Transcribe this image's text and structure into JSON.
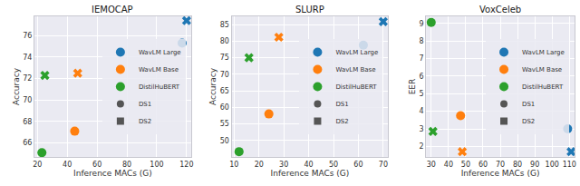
{
  "chart_data": [
    {
      "type": "scatter",
      "title": "IEMOCAP",
      "x_label": "Inference MACs (G)",
      "y_label": "Accuracy",
      "xlim": [
        18,
        123
      ],
      "xticks": [
        20,
        40,
        60,
        80,
        100,
        120
      ],
      "ylim": [
        64.7,
        77.8
      ],
      "yticks": [
        66,
        68,
        70,
        72,
        74,
        76
      ],
      "grid": true,
      "legend": "center right",
      "series": [
        {
          "name": "WavLM Large",
          "color": "#1f77b4",
          "marker": "circle"
        },
        {
          "name": "WavLM Base",
          "color": "#ff7f0e",
          "marker": "circle"
        },
        {
          "name": "DistilHuBERT",
          "color": "#2ca02c",
          "marker": "circle"
        },
        {
          "name": "DS1",
          "color": "#555555",
          "marker": "circle"
        },
        {
          "name": "DS2",
          "color": "#555555",
          "marker": "square"
        }
      ],
      "points": [
        {
          "series": "WavLM Large",
          "dataset": "DS1",
          "marker": "circle",
          "x": 117,
          "y": 75.3
        },
        {
          "series": "WavLM Large",
          "dataset": "DS2",
          "marker": "x",
          "x": 120,
          "y": 77.4
        },
        {
          "series": "WavLM Base",
          "dataset": "DS1",
          "marker": "circle",
          "x": 45,
          "y": 67.1
        },
        {
          "series": "WavLM Base",
          "dataset": "DS2",
          "marker": "x",
          "x": 47,
          "y": 72.5
        },
        {
          "series": "DistilHuBERT",
          "dataset": "DS1",
          "marker": "circle",
          "x": 23,
          "y": 65.1
        },
        {
          "series": "DistilHuBERT",
          "dataset": "DS2",
          "marker": "x",
          "x": 25,
          "y": 72.3
        }
      ]
    },
    {
      "type": "scatter",
      "title": "SLURP",
      "x_label": "Inference MACs (G)",
      "y_label": "Accuracy",
      "xlim": [
        9,
        72
      ],
      "xticks": [
        10,
        20,
        30,
        40,
        50,
        60,
        70
      ],
      "ylim": [
        45,
        87.5
      ],
      "yticks": [
        50,
        55,
        60,
        65,
        70,
        75,
        80,
        85
      ],
      "grid": true,
      "legend": "center right",
      "series": [
        {
          "name": "WavLM Large",
          "color": "#1f77b4",
          "marker": "circle"
        },
        {
          "name": "WavLM Base",
          "color": "#ff7f0e",
          "marker": "circle"
        },
        {
          "name": "DistilHuBERT",
          "color": "#2ca02c",
          "marker": "circle"
        },
        {
          "name": "DS1",
          "color": "#555555",
          "marker": "circle"
        },
        {
          "name": "DS2",
          "color": "#555555",
          "marker": "square"
        }
      ],
      "points": [
        {
          "series": "WavLM Large",
          "dataset": "DS1",
          "marker": "circle",
          "x": 62,
          "y": 78.8
        },
        {
          "series": "WavLM Large",
          "dataset": "DS2",
          "marker": "x",
          "x": 70,
          "y": 85.9
        },
        {
          "series": "WavLM Base",
          "dataset": "DS1",
          "marker": "circle",
          "x": 24,
          "y": 58
        },
        {
          "series": "WavLM Base",
          "dataset": "DS2",
          "marker": "x",
          "x": 28,
          "y": 81.2
        },
        {
          "series": "DistilHuBERT",
          "dataset": "DS1",
          "marker": "circle",
          "x": 12,
          "y": 46.6
        },
        {
          "series": "DistilHuBERT",
          "dataset": "DS2",
          "marker": "x",
          "x": 16,
          "y": 75
        }
      ]
    },
    {
      "type": "scatter",
      "title": "VoxCeleb",
      "x_label": "Inference MACs (G)",
      "y_label": "EER",
      "xlim": [
        27,
        113
      ],
      "xticks": [
        30,
        40,
        50,
        60,
        70,
        80,
        90,
        100,
        110
      ],
      "ylim": [
        1.4,
        9.4
      ],
      "yticks": [
        2,
        3,
        4,
        5,
        6,
        7,
        8,
        9
      ],
      "grid": true,
      "legend": "center right",
      "series": [
        {
          "name": "WavLM Large",
          "color": "#1f77b4",
          "marker": "circle"
        },
        {
          "name": "WavLM Base",
          "color": "#ff7f0e",
          "marker": "circle"
        },
        {
          "name": "DistilHuBERT",
          "color": "#2ca02c",
          "marker": "circle"
        },
        {
          "name": "DS1",
          "color": "#555555",
          "marker": "circle"
        },
        {
          "name": "DS2",
          "color": "#555555",
          "marker": "square"
        }
      ],
      "points": [
        {
          "series": "WavLM Large",
          "dataset": "DS1",
          "marker": "circle",
          "x": 109,
          "y": 3.0
        },
        {
          "series": "WavLM Large",
          "dataset": "DS2",
          "marker": "x",
          "x": 111,
          "y": 1.7
        },
        {
          "series": "WavLM Base",
          "dataset": "DS1",
          "marker": "circle",
          "x": 47,
          "y": 3.75
        },
        {
          "series": "WavLM Base",
          "dataset": "DS2",
          "marker": "x",
          "x": 48,
          "y": 1.7
        },
        {
          "series": "DistilHuBERT",
          "dataset": "DS1",
          "marker": "circle",
          "x": 30,
          "y": 9.05
        },
        {
          "series": "DistilHuBERT",
          "dataset": "DS2",
          "marker": "x",
          "x": 31,
          "y": 2.85
        }
      ]
    }
  ]
}
